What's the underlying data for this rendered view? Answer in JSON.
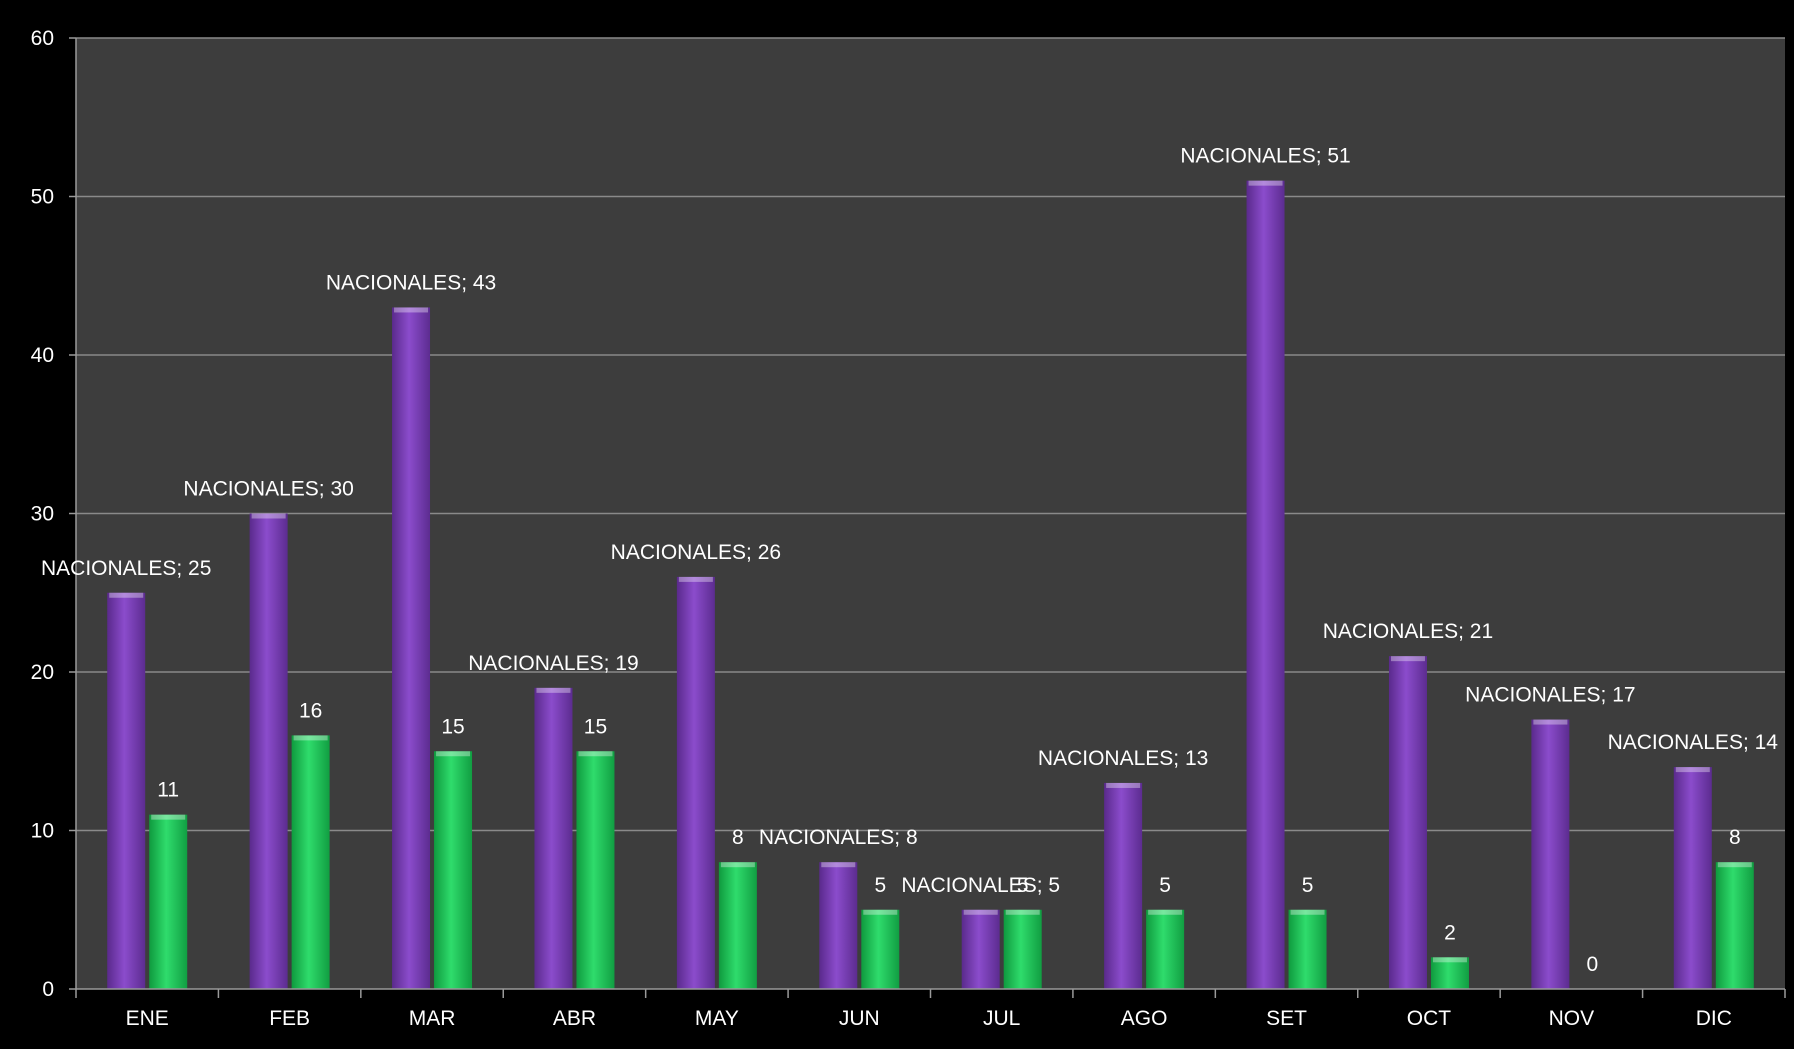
{
  "chart_data": {
    "type": "bar",
    "categories": [
      "ENE",
      "FEB",
      "MAR",
      "ABR",
      "MAY",
      "JUN",
      "JUL",
      "AGO",
      "SET",
      "OCT",
      "NOV",
      "DIC"
    ],
    "series": [
      {
        "name": "NACIONALES",
        "values": [
          25,
          30,
          43,
          19,
          26,
          8,
          5,
          13,
          51,
          21,
          17,
          14
        ],
        "color": "#7a3db8",
        "label_format": "name_value"
      },
      {
        "values": [
          11,
          16,
          15,
          15,
          8,
          5,
          5,
          5,
          5,
          2,
          0,
          8
        ],
        "color": "#1fc45a",
        "label_format": "value"
      }
    ],
    "ylim": [
      0,
      60
    ],
    "yticks": [
      0,
      10,
      20,
      30,
      40,
      50,
      60
    ],
    "grid": true,
    "legend": "none",
    "colors": {
      "background": "#000000",
      "plot_area": "#3d3d3d",
      "gridline": "#8a8a8a",
      "text": "#ffffff"
    }
  }
}
